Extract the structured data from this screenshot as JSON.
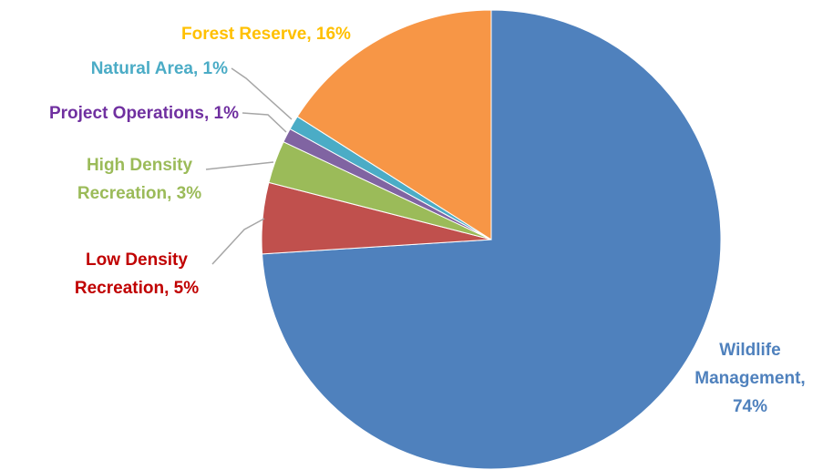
{
  "chart_data": {
    "type": "pie",
    "title": "",
    "start_angle_deg": 0,
    "direction": "clockwise",
    "slices": [
      {
        "name": "Wildlife Management",
        "value": 74,
        "color": "#4F81BD",
        "label_lines": [
          "Wildlife",
          "Management,",
          "74%"
        ]
      },
      {
        "name": "Low Density Recreation",
        "value": 5,
        "color": "#C0504D",
        "label_lines": [
          "Low Density",
          "Recreation, 5%"
        ]
      },
      {
        "name": "High Density Recreation",
        "value": 3,
        "color": "#9BBB59",
        "label_lines": [
          "High Density",
          "Recreation, 3%"
        ]
      },
      {
        "name": "Project Operations",
        "value": 1,
        "color": "#8064A2",
        "label_lines": [
          "Project Operations, 1%"
        ]
      },
      {
        "name": "Natural Area",
        "value": 1,
        "color": "#4BACC6",
        "label_lines": [
          "Natural Area, 1%"
        ]
      },
      {
        "name": "Forest Reserve",
        "value": 16,
        "color": "#F79646",
        "label_lines": [
          "Forest Reserve, 16%"
        ]
      }
    ],
    "label_colors": [
      "#4F81BD",
      "#C00000",
      "#9BBB59",
      "#7030A0",
      "#4BACC6",
      "#FFC000"
    ],
    "leader_line_color": "#A6A6A6"
  }
}
